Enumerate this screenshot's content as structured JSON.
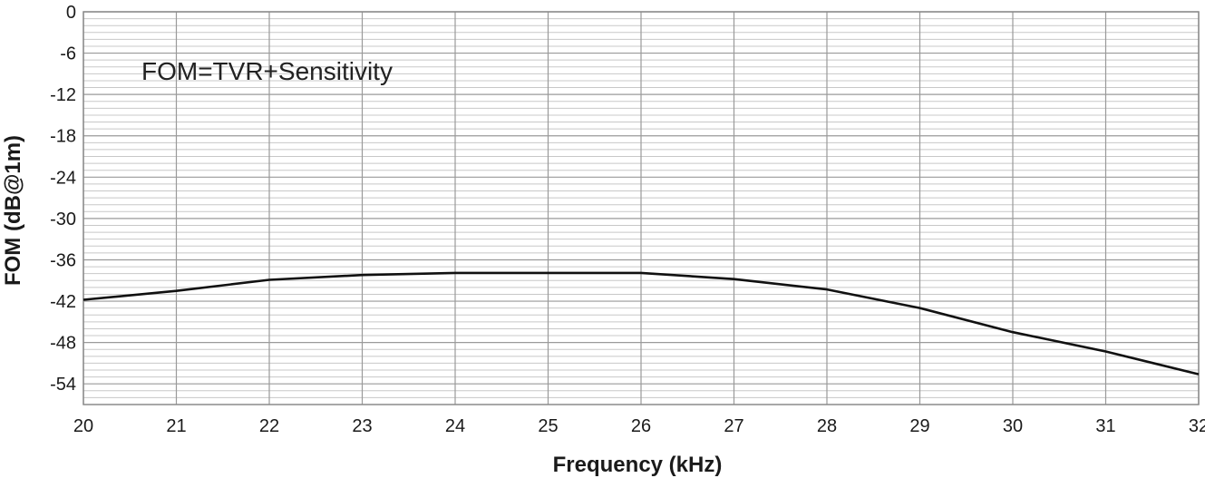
{
  "chart_data": {
    "type": "line",
    "annotation": "FOM=TVR+Sensitivity",
    "xlabel": "Frequency (kHz)",
    "ylabel": "FOM (dB@1m)",
    "xlim": [
      20,
      32
    ],
    "ylim": [
      -57,
      0
    ],
    "x_ticks": [
      20,
      21,
      22,
      23,
      24,
      25,
      26,
      27,
      28,
      29,
      30,
      31,
      32
    ],
    "y_ticks": [
      0,
      -6,
      -12,
      -18,
      -24,
      -30,
      -36,
      -42,
      -48,
      -54
    ],
    "grid": true,
    "series": [
      {
        "x": [
          20,
          21,
          22,
          23,
          24,
          25,
          26,
          27,
          28,
          29,
          30,
          31,
          32
        ],
        "y": [
          -41.8,
          -40.5,
          -38.9,
          -38.2,
          -37.9,
          -37.9,
          -37.9,
          -38.8,
          -40.3,
          -43.0,
          -46.5,
          -49.3,
          -52.6
        ]
      }
    ]
  }
}
